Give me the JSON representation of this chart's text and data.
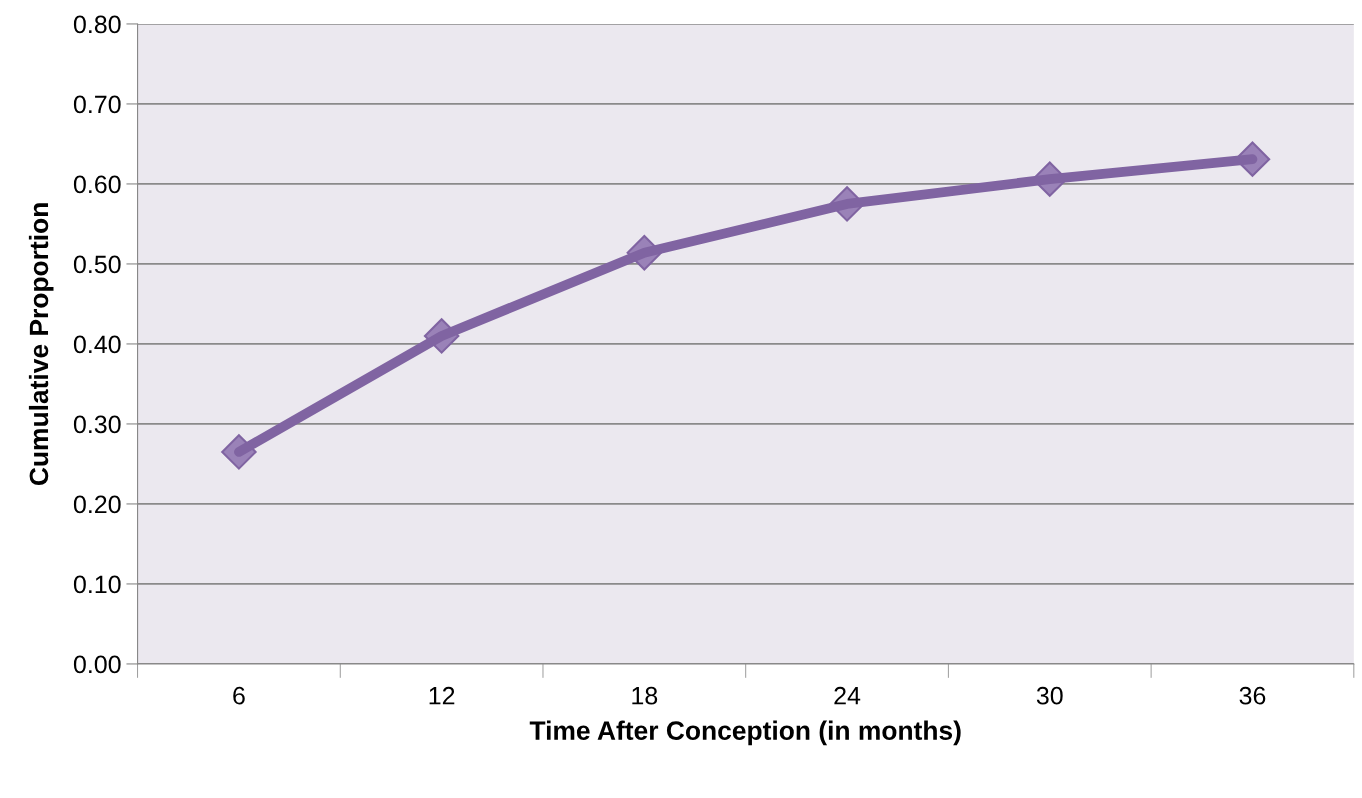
{
  "chart_data": {
    "type": "line",
    "xlabel": "Time After Conception (in months)",
    "ylabel": "Cumulative Proportion",
    "categories": [
      "6",
      "12",
      "18",
      "24",
      "30",
      "36"
    ],
    "series": [
      {
        "color": "#8064a2",
        "values": [
          0.265,
          0.41,
          0.514,
          0.575,
          0.606,
          0.631
        ]
      }
    ],
    "ylim": [
      0,
      0.8
    ],
    "yticks": [
      {
        "value": 0,
        "label": "0.00"
      },
      {
        "value": 0.1,
        "label": "0.10"
      },
      {
        "value": 0.2,
        "label": "0.20"
      },
      {
        "value": 0.3,
        "label": "0.30"
      },
      {
        "value": 0.4,
        "label": "0.40"
      },
      {
        "value": 0.5,
        "label": "0.50"
      },
      {
        "value": 0.6,
        "label": "0.60"
      },
      {
        "value": 0.7,
        "label": "0.70"
      },
      {
        "value": 0.8,
        "label": "0.80"
      }
    ],
    "grid": "y",
    "marker": "diamond",
    "line_style": "solid"
  }
}
